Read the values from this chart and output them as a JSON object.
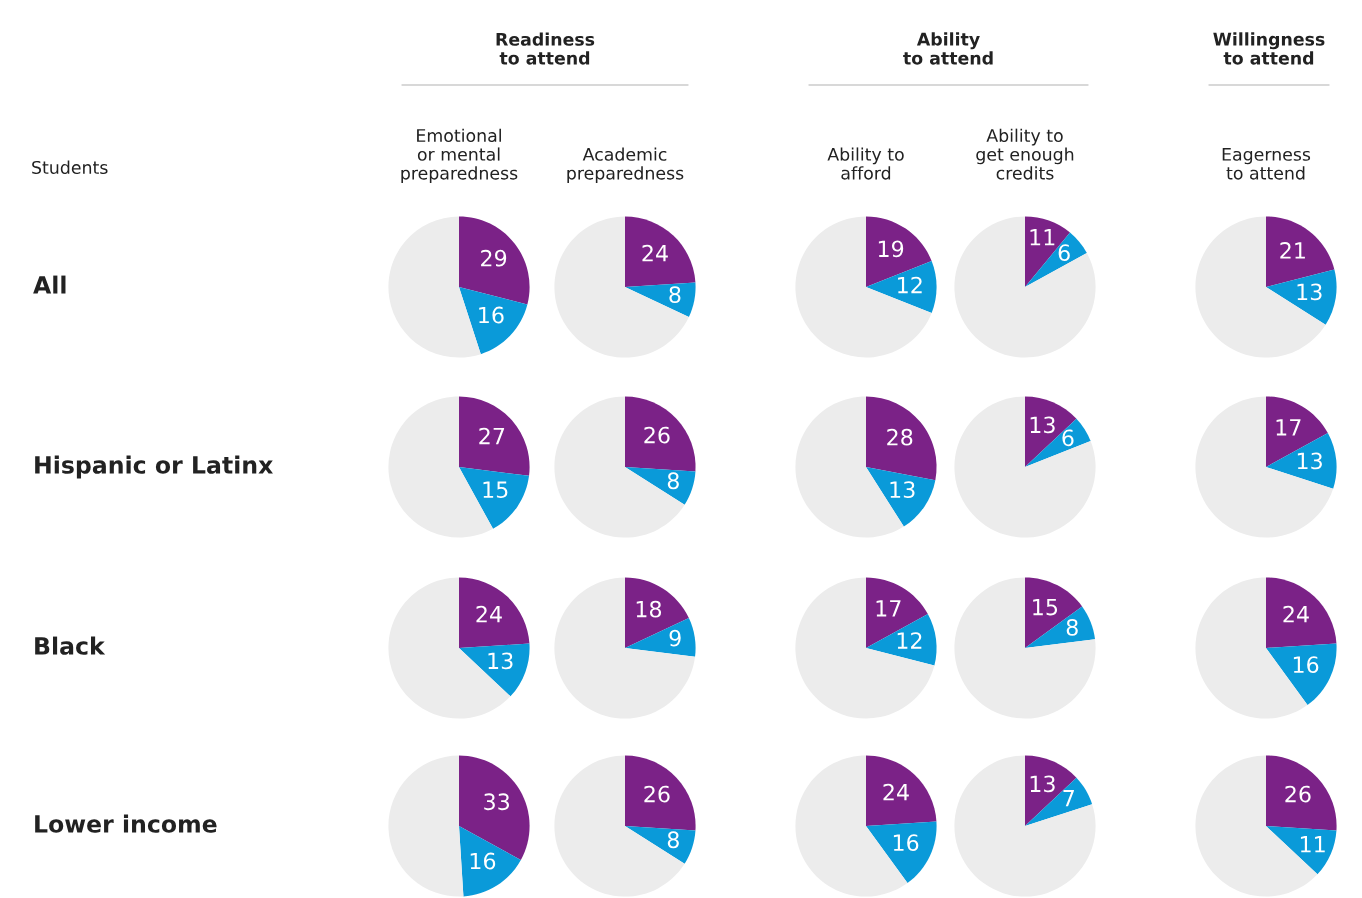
{
  "chart_data": [
    {
      "type": "pie",
      "title": "Emotional\nor mental\npreparedness",
      "subtitle": "Readiness\nto attend",
      "annotations": [
        "Students"
      ],
      "ylabel": "All",
      "categories": [
        null,
        null,
        null
      ],
      "values": [
        29,
        16,
        55
      ],
      "colors": [
        "#7b2287",
        "#0a9ad9",
        "#ececec"
      ],
      "value_labels": [
        "29",
        "16",
        null
      ]
    },
    {
      "type": "pie",
      "title": "Academic\npreparedness",
      "categories": [
        null,
        null,
        null
      ],
      "values": [
        24,
        8,
        68
      ],
      "colors": [
        "#7b2287",
        "#0a9ad9",
        "#ececec"
      ],
      "value_labels": [
        "24",
        "8",
        null
      ]
    },
    {
      "type": "pie",
      "title": "Ability to\nafford",
      "subtitle": "Ability\nto attend",
      "categories": [
        null,
        null,
        null
      ],
      "values": [
        19,
        12,
        69
      ],
      "colors": [
        "#7b2287",
        "#0a9ad9",
        "#ececec"
      ],
      "value_labels": [
        "19",
        "12",
        null
      ]
    },
    {
      "type": "pie",
      "title": "Ability to\nget enough\ncredits",
      "categories": [
        null,
        null,
        null
      ],
      "values": [
        11,
        6,
        83
      ],
      "colors": [
        "#7b2287",
        "#0a9ad9",
        "#ececec"
      ],
      "value_labels": [
        "11",
        "6",
        null
      ]
    },
    {
      "type": "pie",
      "title": "Eagerness\nto attend",
      "subtitle": "Willingness\nto attend",
      "categories": [
        null,
        null,
        null
      ],
      "values": [
        21,
        13,
        66
      ],
      "colors": [
        "#7b2287",
        "#0a9ad9",
        "#ececec"
      ],
      "value_labels": [
        "21",
        "13",
        null
      ]
    },
    {
      "type": "pie",
      "ylabel": "Hispanic or Latinx",
      "categories": [
        null,
        null,
        null
      ],
      "values": [
        27,
        15,
        58
      ],
      "colors": [
        "#7b2287",
        "#0a9ad9",
        "#ececec"
      ],
      "value_labels": [
        "27",
        "15",
        null
      ]
    },
    {
      "type": "pie",
      "categories": [
        null,
        null,
        null
      ],
      "values": [
        26,
        8,
        66
      ],
      "colors": [
        "#7b2287",
        "#0a9ad9",
        "#ececec"
      ],
      "value_labels": [
        "26",
        "8",
        null
      ]
    },
    {
      "type": "pie",
      "categories": [
        null,
        null,
        null
      ],
      "values": [
        28,
        13,
        59
      ],
      "colors": [
        "#7b2287",
        "#0a9ad9",
        "#ececec"
      ],
      "value_labels": [
        "28",
        "13",
        null
      ]
    },
    {
      "type": "pie",
      "categories": [
        null,
        null,
        null
      ],
      "values": [
        13,
        6,
        81
      ],
      "colors": [
        "#7b2287",
        "#0a9ad9",
        "#ececec"
      ],
      "value_labels": [
        "13",
        "6",
        null
      ]
    },
    {
      "type": "pie",
      "categories": [
        null,
        null,
        null
      ],
      "values": [
        17,
        13,
        70
      ],
      "colors": [
        "#7b2287",
        "#0a9ad9",
        "#ececec"
      ],
      "value_labels": [
        "17",
        "13",
        null
      ]
    },
    {
      "type": "pie",
      "ylabel": "Black",
      "categories": [
        null,
        null,
        null
      ],
      "values": [
        24,
        13,
        63
      ],
      "colors": [
        "#7b2287",
        "#0a9ad9",
        "#ececec"
      ],
      "value_labels": [
        "24",
        "13",
        null
      ]
    },
    {
      "type": "pie",
      "categories": [
        null,
        null,
        null
      ],
      "values": [
        18,
        9,
        73
      ],
      "colors": [
        "#7b2287",
        "#0a9ad9",
        "#ececec"
      ],
      "value_labels": [
        "18",
        "9",
        null
      ]
    },
    {
      "type": "pie",
      "categories": [
        null,
        null,
        null
      ],
      "values": [
        17,
        12,
        71
      ],
      "colors": [
        "#7b2287",
        "#0a9ad9",
        "#ececec"
      ],
      "value_labels": [
        "17",
        "12",
        null
      ]
    },
    {
      "type": "pie",
      "categories": [
        null,
        null,
        null
      ],
      "values": [
        15,
        8,
        77
      ],
      "colors": [
        "#7b2287",
        "#0a9ad9",
        "#ececec"
      ],
      "value_labels": [
        "15",
        "8",
        null
      ]
    },
    {
      "type": "pie",
      "categories": [
        null,
        null,
        null
      ],
      "values": [
        24,
        16,
        60
      ],
      "colors": [
        "#7b2287",
        "#0a9ad9",
        "#ececec"
      ],
      "value_labels": [
        "24",
        "16",
        null
      ]
    },
    {
      "type": "pie",
      "ylabel": "Lower income",
      "categories": [
        null,
        null,
        null
      ],
      "values": [
        33,
        16,
        51
      ],
      "colors": [
        "#7b2287",
        "#0a9ad9",
        "#ececec"
      ],
      "value_labels": [
        "33",
        "16",
        null
      ]
    },
    {
      "type": "pie",
      "categories": [
        null,
        null,
        null
      ],
      "values": [
        26,
        8,
        66
      ],
      "colors": [
        "#7b2287",
        "#0a9ad9",
        "#ececec"
      ],
      "value_labels": [
        "26",
        "8",
        null
      ]
    },
    {
      "type": "pie",
      "categories": [
        null,
        null,
        null
      ],
      "values": [
        24,
        16,
        60
      ],
      "colors": [
        "#7b2287",
        "#0a9ad9",
        "#ececec"
      ],
      "value_labels": [
        "24",
        "16",
        null
      ]
    },
    {
      "type": "pie",
      "categories": [
        null,
        null,
        null
      ],
      "values": [
        13,
        7,
        80
      ],
      "colors": [
        "#7b2287",
        "#0a9ad9",
        "#ececec"
      ],
      "value_labels": [
        "13",
        "7",
        null
      ]
    },
    {
      "type": "pie",
      "categories": [
        null,
        null,
        null
      ],
      "values": [
        26,
        11,
        63
      ],
      "colors": [
        "#7b2287",
        "#0a9ad9",
        "#ececec"
      ],
      "value_labels": [
        "26",
        "11",
        null
      ]
    }
  ]
}
